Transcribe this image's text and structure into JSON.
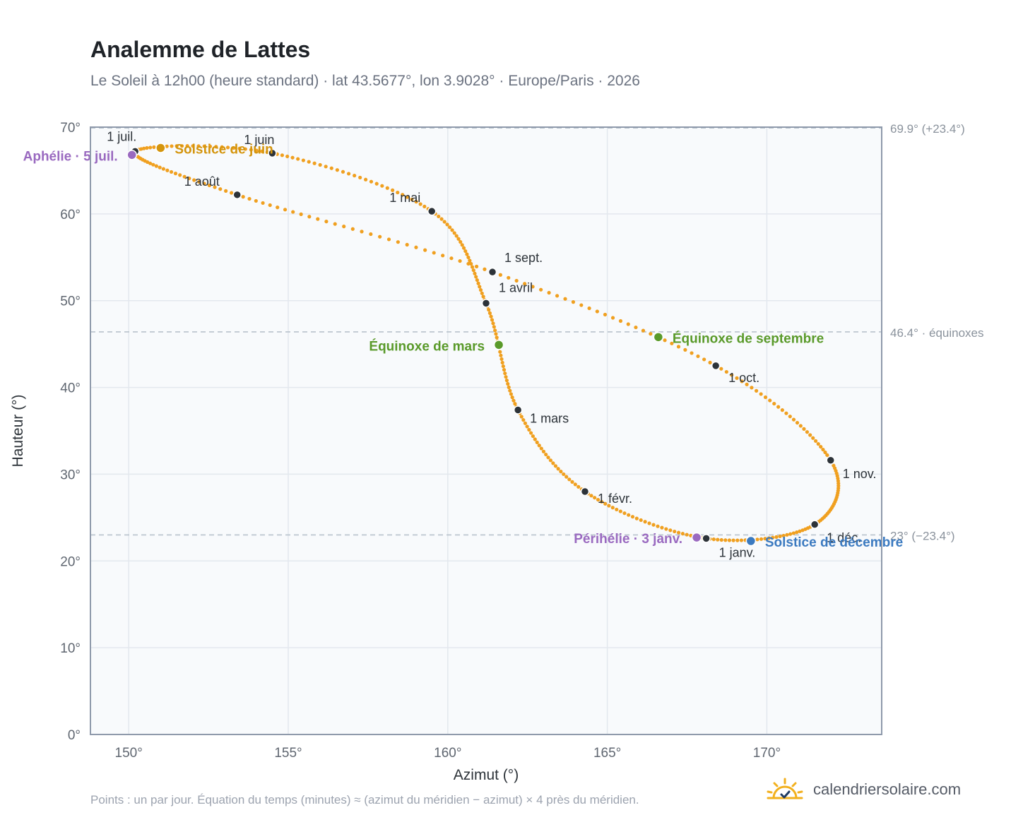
{
  "title": "Analemme de Lattes",
  "subtitle": "Le Soleil à 12h00 (heure standard) · lat 43.5677°, lon 3.9028° · Europe/Paris · 2026",
  "footnote": "Points : un par jour. Équation du temps (minutes) ≈ (azimut du méridien − azimut) × 4 près du méridien.",
  "brand": {
    "name": "calendriersolaire.com",
    "icon": "sun-check-icon"
  },
  "colors": {
    "curve": "#f0a020",
    "month_marker": "#2d3339",
    "solstice_june": "#d4950e",
    "solstice_december": "#3b7ac0",
    "equinox": "#5a9a2a",
    "apsis": "#9a6ac0",
    "reference_line": "#b8c2cc",
    "plot_bg": "#f8fafc",
    "grid": "#e3e8ee",
    "frame": "#8f9aab"
  },
  "chart_data": {
    "type": "scatter",
    "title": "Analemme de Lattes",
    "xlabel": "Azimut (°)",
    "ylabel": "Hauteur (°)",
    "xlim": [
      148.8,
      173.6
    ],
    "ylim": [
      0,
      70
    ],
    "xticks": [
      150,
      155,
      160,
      165,
      170
    ],
    "yticks": [
      0,
      10,
      20,
      30,
      40,
      50,
      60,
      70
    ],
    "xtick_labels": [
      "150°",
      "155°",
      "160°",
      "165°",
      "170°"
    ],
    "ytick_labels": [
      "0°",
      "10°",
      "20°",
      "30°",
      "40°",
      "50°",
      "60°",
      "70°"
    ],
    "grid": true,
    "reference_lines": [
      {
        "y": 69.9,
        "label": "69.9° (+23.4°)"
      },
      {
        "y": 46.4,
        "label": "46.4° · équinoxes"
      },
      {
        "y": 23.0,
        "label": "23° (−23.4°)"
      }
    ],
    "month_markers": [
      {
        "label": "1 janv.",
        "x": 168.1,
        "y": 22.6
      },
      {
        "label": "1 févr.",
        "x": 164.3,
        "y": 28.0
      },
      {
        "label": "1 mars",
        "x": 162.2,
        "y": 37.4
      },
      {
        "label": "1 avril",
        "x": 161.2,
        "y": 49.7
      },
      {
        "label": "1 mai",
        "x": 159.5,
        "y": 60.3
      },
      {
        "label": "1 juin",
        "x": 154.5,
        "y": 67.0
      },
      {
        "label": "1 juil.",
        "x": 150.2,
        "y": 67.2
      },
      {
        "label": "1 août",
        "x": 153.4,
        "y": 62.2
      },
      {
        "label": "1 sept.",
        "x": 161.4,
        "y": 53.3
      },
      {
        "label": "1 oct.",
        "x": 168.4,
        "y": 42.5
      },
      {
        "label": "1 nov.",
        "x": 172.0,
        "y": 31.6
      },
      {
        "label": "1 déc.",
        "x": 171.5,
        "y": 24.2
      }
    ],
    "events": [
      {
        "label": "Solstice de juin",
        "x": 151.0,
        "y": 67.6,
        "color": "solstice_june"
      },
      {
        "label": "Équinoxe de mars",
        "x": 161.6,
        "y": 44.9,
        "color": "equinox"
      },
      {
        "label": "Équinoxe de septembre",
        "x": 166.6,
        "y": 45.8,
        "color": "equinox"
      },
      {
        "label": "Solstice de décembre",
        "x": 169.5,
        "y": 22.3,
        "color": "solstice_december"
      },
      {
        "label": "Aphélie · 5 juil.",
        "x": 150.1,
        "y": 66.8,
        "color": "apsis"
      },
      {
        "label": "Périhélie · 3 janv.",
        "x": 167.8,
        "y": 22.7,
        "color": "apsis"
      }
    ]
  }
}
